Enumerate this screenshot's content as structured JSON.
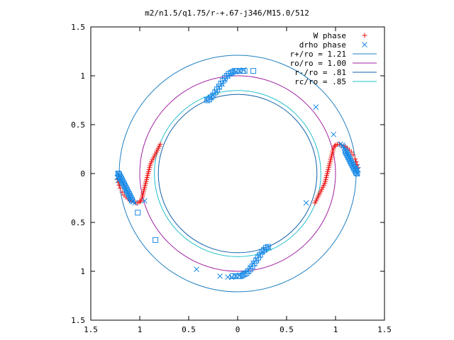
{
  "chart_data": {
    "type": "scatter",
    "title": "m2/n1.5/q1.75/r-+.67-j346/M15.0/512",
    "xlabel": "",
    "ylabel": "",
    "xlim": [
      -1.5,
      1.5
    ],
    "ylim": [
      -1.5,
      1.5
    ],
    "grid": false,
    "legend_position": "top-right",
    "x_ticks": [
      {
        "value": -1.5,
        "label": "1.5"
      },
      {
        "value": -1.0,
        "label": "1"
      },
      {
        "value": -0.5,
        "label": "0.5"
      },
      {
        "value": 0,
        "label": "0"
      },
      {
        "value": 0.5,
        "label": "0.5"
      },
      {
        "value": 1.0,
        "label": "1"
      },
      {
        "value": 1.5,
        "label": "1.5"
      }
    ],
    "y_ticks": [
      {
        "value": 1.5,
        "label": "1.5"
      },
      {
        "value": 1.0,
        "label": "1"
      },
      {
        "value": 0.5,
        "label": "0.5"
      },
      {
        "value": 0,
        "label": "0"
      },
      {
        "value": -0.5,
        "label": "0.5"
      },
      {
        "value": -1.0,
        "label": "1"
      },
      {
        "value": -1.5,
        "label": "1.5"
      }
    ],
    "circles": [
      {
        "name": "r+/ro = 1.21",
        "radius": 1.21,
        "color": "#1f7fbf"
      },
      {
        "name": "ro/ro = 1.00",
        "radius": 1.0,
        "color": "#a020a0"
      },
      {
        "name": "r-/ro = .81",
        "radius": 0.81,
        "color": "#1060a8"
      },
      {
        "name": "rc/ro = .85",
        "radius": 0.85,
        "color": "#20c0c8"
      }
    ],
    "series": [
      {
        "name": "W phase",
        "marker": "plus",
        "color": "#ee1111",
        "points": [
          [
            -0.79,
            0.3
          ],
          [
            -0.8,
            0.28
          ],
          [
            -0.81,
            0.26
          ],
          [
            -0.82,
            0.24
          ],
          [
            -0.83,
            0.22
          ],
          [
            -0.84,
            0.2
          ],
          [
            -0.85,
            0.18
          ],
          [
            -0.86,
            0.16
          ],
          [
            -0.87,
            0.14
          ],
          [
            -0.88,
            0.12
          ],
          [
            -0.89,
            0.1
          ],
          [
            -0.895,
            0.08
          ],
          [
            -0.9,
            0.06
          ],
          [
            -0.905,
            0.04
          ],
          [
            -0.91,
            0.02
          ],
          [
            -0.915,
            0.0
          ],
          [
            -0.92,
            -0.02
          ],
          [
            -0.925,
            -0.04
          ],
          [
            -0.93,
            -0.06
          ],
          [
            -0.935,
            -0.08
          ],
          [
            -0.94,
            -0.1
          ],
          [
            -0.945,
            -0.12
          ],
          [
            -0.95,
            -0.14
          ],
          [
            -0.955,
            -0.16
          ],
          [
            -0.96,
            -0.18
          ],
          [
            -0.965,
            -0.2
          ],
          [
            -0.97,
            -0.22
          ],
          [
            -0.975,
            -0.24
          ],
          [
            -0.98,
            -0.26
          ],
          [
            -0.99,
            -0.28
          ],
          [
            -1.0,
            -0.29
          ],
          [
            -1.02,
            -0.3
          ],
          [
            -1.04,
            -0.3
          ],
          [
            -1.06,
            -0.29
          ],
          [
            -1.08,
            -0.28
          ],
          [
            -1.1,
            -0.27
          ],
          [
            -1.12,
            -0.26
          ],
          [
            -1.14,
            -0.24
          ],
          [
            -1.16,
            -0.22
          ],
          [
            -1.18,
            -0.19
          ],
          [
            -1.2,
            -0.15
          ],
          [
            -1.21,
            -0.12
          ],
          [
            -1.22,
            -0.09
          ],
          [
            -1.23,
            -0.06
          ],
          [
            0.79,
            -0.3
          ],
          [
            0.8,
            -0.28
          ],
          [
            0.81,
            -0.26
          ],
          [
            0.82,
            -0.24
          ],
          [
            0.83,
            -0.22
          ],
          [
            0.84,
            -0.2
          ],
          [
            0.85,
            -0.18
          ],
          [
            0.86,
            -0.16
          ],
          [
            0.87,
            -0.14
          ],
          [
            0.88,
            -0.12
          ],
          [
            0.89,
            -0.1
          ],
          [
            0.895,
            -0.08
          ],
          [
            0.9,
            -0.06
          ],
          [
            0.905,
            -0.04
          ],
          [
            0.91,
            -0.02
          ],
          [
            0.915,
            0.0
          ],
          [
            0.92,
            0.02
          ],
          [
            0.925,
            0.04
          ],
          [
            0.93,
            0.06
          ],
          [
            0.935,
            0.08
          ],
          [
            0.94,
            0.1
          ],
          [
            0.945,
            0.12
          ],
          [
            0.95,
            0.14
          ],
          [
            0.955,
            0.16
          ],
          [
            0.96,
            0.18
          ],
          [
            0.965,
            0.2
          ],
          [
            0.97,
            0.22
          ],
          [
            0.975,
            0.24
          ],
          [
            0.98,
            0.26
          ],
          [
            0.99,
            0.28
          ],
          [
            1.0,
            0.29
          ],
          [
            1.02,
            0.3
          ],
          [
            1.04,
            0.3
          ],
          [
            1.06,
            0.29
          ],
          [
            1.08,
            0.28
          ],
          [
            1.1,
            0.27
          ],
          [
            1.12,
            0.26
          ],
          [
            1.14,
            0.24
          ],
          [
            1.16,
            0.22
          ],
          [
            1.18,
            0.19
          ],
          [
            1.2,
            0.15
          ],
          [
            1.21,
            0.12
          ],
          [
            1.22,
            0.09
          ],
          [
            1.23,
            0.06
          ]
        ]
      },
      {
        "name": "drho phase",
        "marker": "cross",
        "color": "#1a8ae6",
        "points": [
          [
            -1.22,
            0.0
          ],
          [
            -1.21,
            -0.02
          ],
          [
            -1.2,
            -0.04
          ],
          [
            -1.19,
            -0.06
          ],
          [
            -1.18,
            -0.08
          ],
          [
            -1.17,
            -0.1
          ],
          [
            -1.16,
            -0.12
          ],
          [
            -1.15,
            -0.14
          ],
          [
            -1.14,
            -0.16
          ],
          [
            -1.13,
            -0.18
          ],
          [
            -1.12,
            -0.2
          ],
          [
            -1.11,
            -0.22
          ],
          [
            -1.1,
            -0.24
          ],
          [
            -1.09,
            -0.26
          ],
          [
            -1.08,
            -0.28
          ],
          [
            -1.07,
            -0.29
          ],
          [
            -1.05,
            -0.3
          ],
          [
            -1.23,
            -0.04
          ],
          [
            -1.22,
            -0.07
          ],
          [
            1.22,
            0.0
          ],
          [
            1.21,
            0.02
          ],
          [
            1.2,
            0.04
          ],
          [
            1.19,
            0.06
          ],
          [
            1.18,
            0.08
          ],
          [
            1.17,
            0.1
          ],
          [
            1.16,
            0.12
          ],
          [
            1.15,
            0.14
          ],
          [
            1.14,
            0.16
          ],
          [
            1.13,
            0.18
          ],
          [
            1.12,
            0.2
          ],
          [
            1.11,
            0.22
          ],
          [
            1.1,
            0.24
          ],
          [
            1.09,
            0.26
          ],
          [
            1.08,
            0.28
          ],
          [
            1.07,
            0.29
          ],
          [
            1.05,
            0.3
          ],
          [
            1.23,
            0.04
          ],
          [
            1.22,
            0.07
          ],
          [
            0.8,
            0.68
          ],
          [
            0.98,
            0.4
          ],
          [
            -0.42,
            -0.98
          ],
          [
            -0.18,
            -1.05
          ],
          [
            -0.1,
            -1.06
          ],
          [
            0.7,
            -0.3
          ],
          [
            -0.95,
            -0.28
          ],
          [
            -0.32,
            0.76
          ],
          [
            -0.28,
            0.78
          ],
          [
            -0.25,
            0.8
          ],
          [
            -0.22,
            0.84
          ],
          [
            -0.19,
            0.88
          ],
          [
            -0.16,
            0.92
          ],
          [
            -0.13,
            0.96
          ],
          [
            -0.1,
            1.0
          ],
          [
            -0.06,
            1.02
          ],
          [
            -0.02,
            1.04
          ],
          [
            0.02,
            1.05
          ],
          [
            0.06,
            1.06
          ],
          [
            0.32,
            -0.76
          ],
          [
            0.28,
            -0.78
          ],
          [
            0.25,
            -0.8
          ],
          [
            0.22,
            -0.84
          ],
          [
            0.19,
            -0.88
          ],
          [
            0.16,
            -0.92
          ],
          [
            0.13,
            -0.96
          ],
          [
            0.1,
            -1.0
          ],
          [
            0.06,
            -1.02
          ],
          [
            0.02,
            -1.04
          ],
          [
            -0.02,
            -1.05
          ],
          [
            -0.06,
            -1.06
          ]
        ]
      },
      {
        "name": "",
        "marker": "square",
        "color": "#1a8ae6",
        "points": [
          [
            -0.31,
            0.75
          ],
          [
            -0.29,
            0.76
          ],
          [
            -0.27,
            0.78
          ],
          [
            -0.25,
            0.8
          ],
          [
            -0.23,
            0.83
          ],
          [
            -0.21,
            0.86
          ],
          [
            -0.19,
            0.89
          ],
          [
            -0.17,
            0.92
          ],
          [
            -0.15,
            0.95
          ],
          [
            -0.13,
            0.98
          ],
          [
            -0.11,
            1.0
          ],
          [
            -0.09,
            1.02
          ],
          [
            -0.07,
            1.03
          ],
          [
            -0.05,
            1.04
          ],
          [
            -0.03,
            1.05
          ],
          [
            -0.01,
            1.05
          ],
          [
            0.02,
            1.05
          ],
          [
            0.05,
            1.05
          ],
          [
            0.07,
            1.05
          ],
          [
            0.16,
            1.05
          ],
          [
            0.31,
            -0.75
          ],
          [
            0.29,
            -0.76
          ],
          [
            0.27,
            -0.78
          ],
          [
            0.25,
            -0.8
          ],
          [
            0.23,
            -0.83
          ],
          [
            0.21,
            -0.86
          ],
          [
            0.19,
            -0.89
          ],
          [
            0.17,
            -0.92
          ],
          [
            0.15,
            -0.95
          ],
          [
            0.13,
            -0.98
          ],
          [
            0.11,
            -1.0
          ],
          [
            0.09,
            -1.02
          ],
          [
            0.07,
            -1.03
          ],
          [
            0.05,
            -1.04
          ],
          [
            0.03,
            -1.05
          ],
          [
            0.01,
            -1.05
          ],
          [
            -0.02,
            -1.05
          ],
          [
            -0.05,
            -1.05
          ],
          [
            -1.22,
            0.0
          ],
          [
            -1.21,
            -0.01
          ],
          [
            -1.2,
            -0.03
          ],
          [
            -1.19,
            -0.05
          ],
          [
            -1.18,
            -0.07
          ],
          [
            -1.17,
            -0.09
          ],
          [
            -1.16,
            -0.11
          ],
          [
            -1.15,
            -0.13
          ],
          [
            -1.14,
            -0.15
          ],
          [
            -1.13,
            -0.17
          ],
          [
            -1.12,
            -0.19
          ],
          [
            -1.11,
            -0.21
          ],
          [
            -1.1,
            -0.23
          ],
          [
            -1.09,
            -0.25
          ],
          [
            -1.08,
            -0.27
          ],
          [
            -1.02,
            -0.4
          ],
          [
            -0.84,
            -0.68
          ],
          [
            1.22,
            0.0
          ],
          [
            1.21,
            0.01
          ],
          [
            1.2,
            0.03
          ],
          [
            1.19,
            0.05
          ],
          [
            1.18,
            0.07
          ],
          [
            1.17,
            0.09
          ],
          [
            1.16,
            0.11
          ],
          [
            1.15,
            0.13
          ],
          [
            1.14,
            0.15
          ],
          [
            1.13,
            0.17
          ],
          [
            1.12,
            0.19
          ],
          [
            1.11,
            0.21
          ],
          [
            1.1,
            0.23
          ]
        ]
      }
    ]
  }
}
